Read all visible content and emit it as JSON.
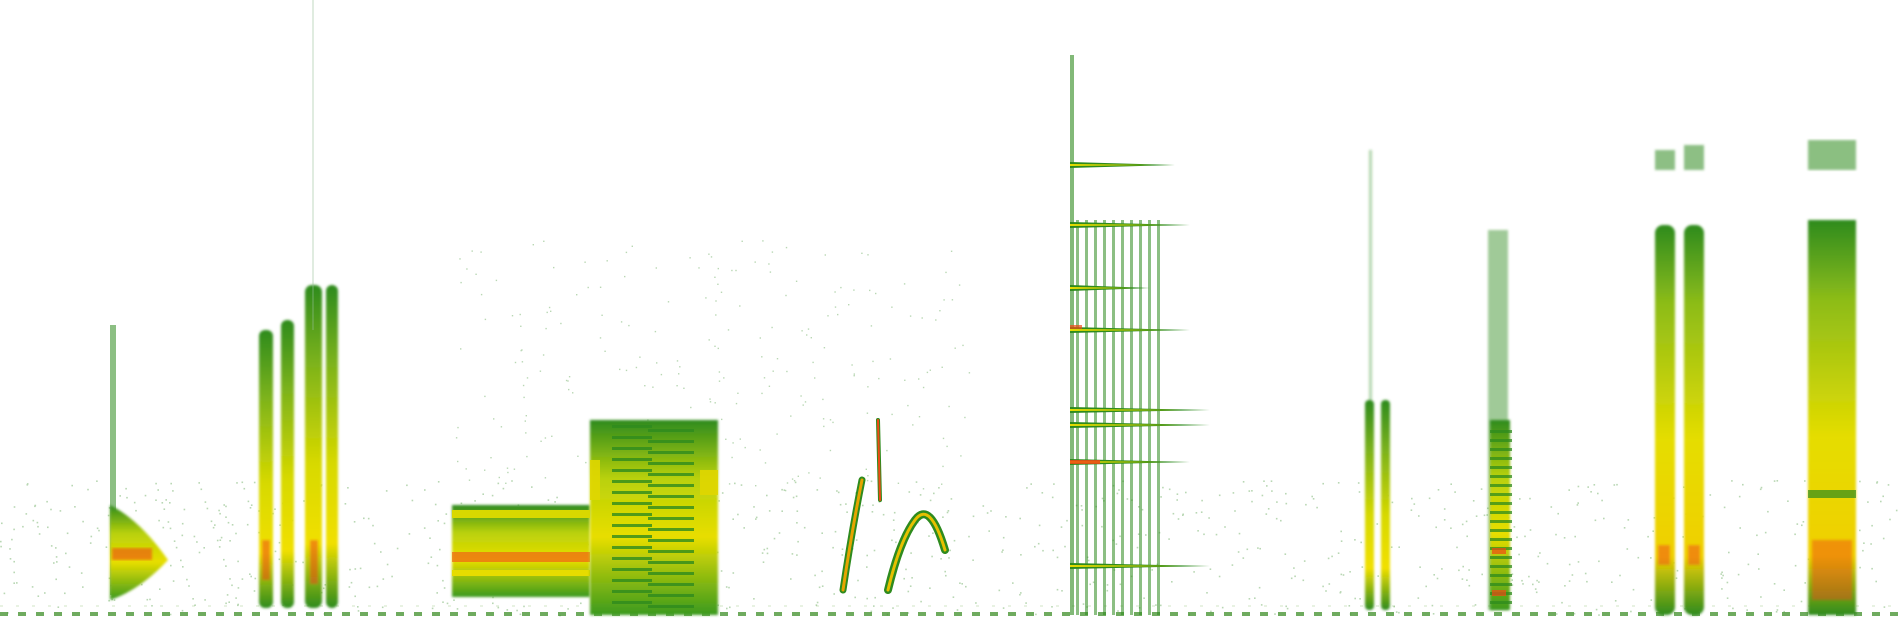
{
  "image": {
    "kind": "spectrogram",
    "background": "#ffffff",
    "palette": {
      "low": "#2e8b1e",
      "mid": "#c6d400",
      "high": "#f2e600",
      "peak": "#ef4a14"
    }
  }
}
